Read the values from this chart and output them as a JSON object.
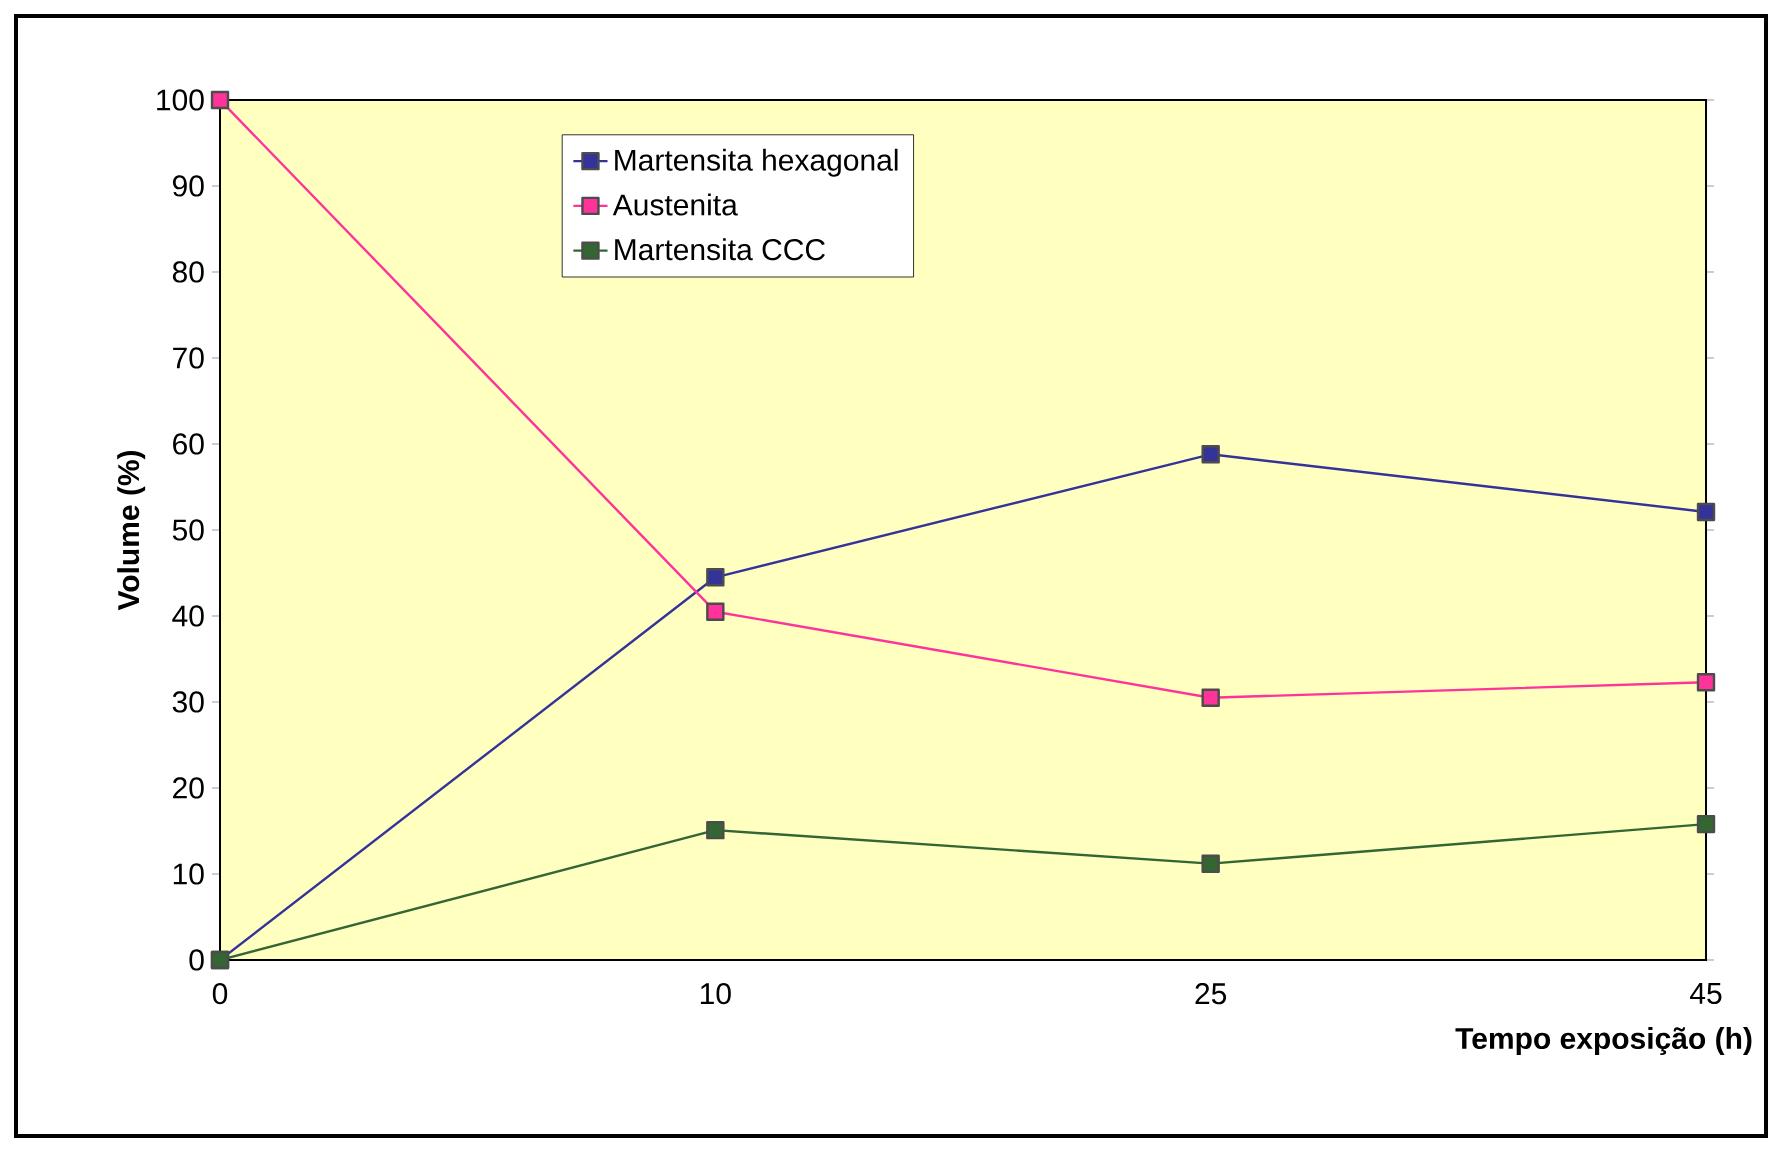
{
  "chart_data": {
    "type": "line",
    "xlabel": "Tempo exposição (h)",
    "ylabel": "Volume (%)",
    "categories": [
      "0",
      "10",
      "25",
      "45"
    ],
    "series": [
      {
        "name": "Martensita hexagonal",
        "color": "#333399",
        "values": [
          0,
          44.5,
          58.8,
          52.1
        ]
      },
      {
        "name": "Austenita",
        "color": "#ff3399",
        "values": [
          100,
          40.5,
          30.5,
          32.3
        ]
      },
      {
        "name": "Martensita CCC",
        "color": "#336633",
        "values": [
          0,
          15.1,
          11.2,
          15.8
        ]
      }
    ],
    "ylim": [
      0,
      100
    ],
    "yticks": [
      0,
      10,
      20,
      30,
      40,
      50,
      60,
      70,
      80,
      90,
      100
    ],
    "marker": "square",
    "legend": "top left",
    "grid": false,
    "line_style": "solid"
  }
}
